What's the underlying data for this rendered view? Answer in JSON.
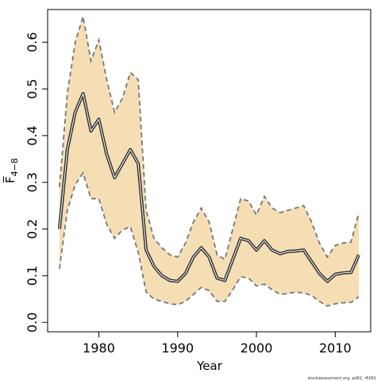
{
  "chart_data": {
    "type": "area",
    "xlabel": "Year",
    "ylabel": "F̅",
    "ylabel_subscript": "4−8",
    "xlim": [
      1973.5,
      2014.5
    ],
    "ylim": [
      -0.02,
      0.67
    ],
    "x_ticks": [
      1980,
      1990,
      2000,
      2010
    ],
    "y_ticks": [
      0.0,
      0.1,
      0.2,
      0.3,
      0.4,
      0.5,
      0.6
    ],
    "y_tick_labels": [
      "0.0",
      "0.1",
      "0.2",
      "0.3",
      "0.4",
      "0.5",
      "0.6"
    ],
    "grid": false,
    "colors": {
      "band": "#f5deb3",
      "bound_line": "#777777",
      "estimate_line": "#333333"
    },
    "credit": "stockassessment.org, pd62, r6061",
    "years": [
      1975,
      1976,
      1977,
      1978,
      1979,
      1980,
      1981,
      1982,
      1983,
      1984,
      1985,
      1986,
      1987,
      1988,
      1989,
      1990,
      1991,
      1992,
      1993,
      1994,
      1995,
      1996,
      1997,
      1998,
      1999,
      2000,
      2001,
      2002,
      2003,
      2004,
      2005,
      2006,
      2007,
      2008,
      2009,
      2010,
      2011,
      2012,
      2013
    ],
    "series": [
      {
        "role": "estimate",
        "values": [
          0.2,
          0.37,
          0.45,
          0.49,
          0.41,
          0.435,
          0.36,
          0.31,
          0.34,
          0.37,
          0.34,
          0.155,
          0.12,
          0.1,
          0.09,
          0.088,
          0.105,
          0.14,
          0.16,
          0.14,
          0.095,
          0.09,
          0.135,
          0.18,
          0.175,
          0.155,
          0.175,
          0.155,
          0.147,
          0.152,
          0.153,
          0.155,
          0.13,
          0.105,
          0.088,
          0.103,
          0.106,
          0.107,
          0.145
        ]
      },
      {
        "role": "upper",
        "values": [
          0.29,
          0.49,
          0.6,
          0.655,
          0.56,
          0.605,
          0.52,
          0.45,
          0.48,
          0.535,
          0.52,
          0.24,
          0.18,
          0.16,
          0.145,
          0.14,
          0.17,
          0.215,
          0.245,
          0.215,
          0.145,
          0.135,
          0.2,
          0.265,
          0.26,
          0.23,
          0.27,
          0.245,
          0.235,
          0.24,
          0.245,
          0.25,
          0.215,
          0.17,
          0.14,
          0.165,
          0.17,
          0.172,
          0.235
        ]
      },
      {
        "role": "lower",
        "values": [
          0.115,
          0.24,
          0.295,
          0.32,
          0.265,
          0.265,
          0.21,
          0.18,
          0.198,
          0.205,
          0.15,
          0.065,
          0.05,
          0.045,
          0.04,
          0.038,
          0.045,
          0.06,
          0.075,
          0.068,
          0.045,
          0.045,
          0.07,
          0.098,
          0.095,
          0.078,
          0.082,
          0.07,
          0.06,
          0.062,
          0.065,
          0.063,
          0.058,
          0.045,
          0.035,
          0.04,
          0.042,
          0.043,
          0.055
        ]
      }
    ]
  }
}
